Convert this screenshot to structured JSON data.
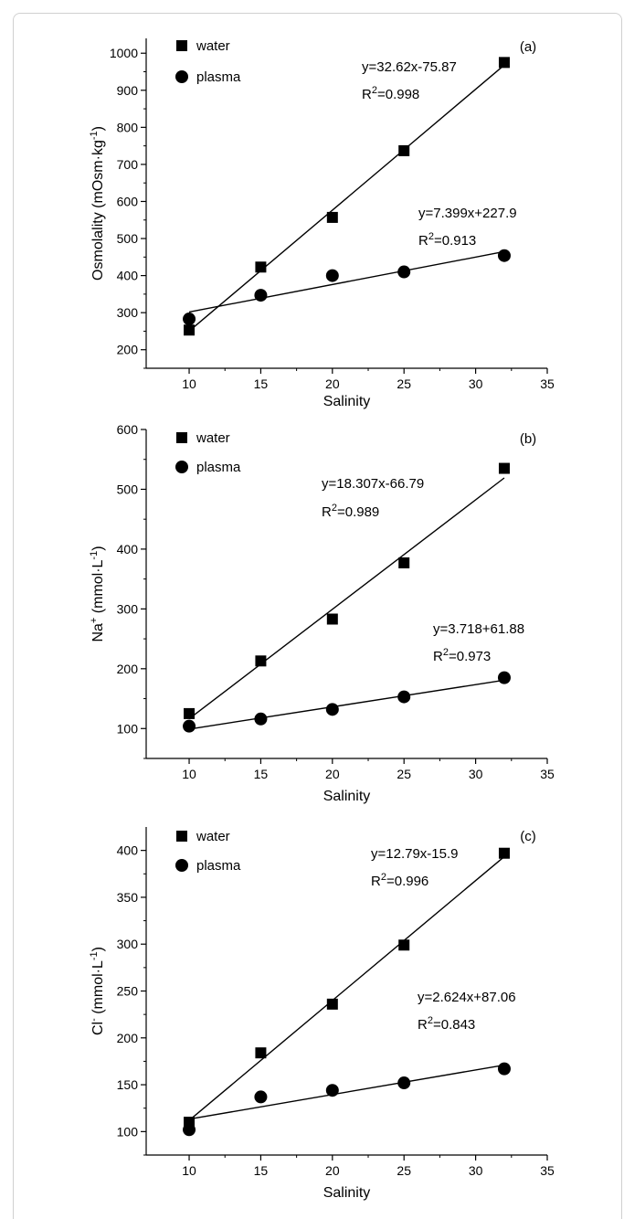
{
  "chart_data": [
    {
      "type": "scatter",
      "panel_label": "(a)",
      "xlabel": "Salinity",
      "ylabel": "Osmolality (mOsm·kg-1)",
      "ylabel_main": "Osmolality (mOsm·kg",
      "ylabel_sup": "-1",
      "ylabel_end": ")",
      "xlim": [
        7,
        35
      ],
      "ylim": [
        150,
        1040
      ],
      "xticks": [
        10,
        15,
        20,
        25,
        30,
        35
      ],
      "yticks": [
        200,
        300,
        400,
        500,
        600,
        700,
        800,
        900,
        1000
      ],
      "legend": [
        "water",
        "plasma"
      ],
      "series": [
        {
          "name": "water",
          "marker": "square",
          "x": [
            10,
            15,
            20,
            25,
            32
          ],
          "y": [
            253,
            423,
            557,
            737,
            975
          ],
          "fit": {
            "slope": 32.62,
            "intercept": -75.87
          },
          "equation": "y=32.62x-75.87",
          "r2_base": "R",
          "r2_sup": "2",
          "r2_value": "=0.998"
        },
        {
          "name": "plasma",
          "marker": "circle",
          "x": [
            10,
            15,
            20,
            25,
            32
          ],
          "y": [
            283,
            347,
            400,
            410,
            454
          ],
          "fit": {
            "slope": 7.399,
            "intercept": 227.9
          },
          "equation": "y=7.399x+227.9",
          "r2_base": "R",
          "r2_sup": "2",
          "r2_value": "=0.913"
        }
      ]
    },
    {
      "type": "scatter",
      "panel_label": "(b)",
      "xlabel": "Salinity",
      "ylabel": "Na+ (mmol·L-1)",
      "ylabel_main": "Na",
      "ylabel_sup1": "+",
      "ylabel_mid": " (mmol·L",
      "ylabel_sup": "-1",
      "ylabel_end": ")",
      "xlim": [
        7,
        35
      ],
      "ylim": [
        50,
        600
      ],
      "xticks": [
        10,
        15,
        20,
        25,
        30,
        35
      ],
      "yticks": [
        100,
        200,
        300,
        400,
        500,
        600
      ],
      "legend": [
        "water",
        "plasma"
      ],
      "series": [
        {
          "name": "water",
          "marker": "square",
          "x": [
            10,
            15,
            20,
            25,
            32
          ],
          "y": [
            125,
            213,
            283,
            377,
            535
          ],
          "fit": {
            "slope": 18.307,
            "intercept": -66.79
          },
          "equation": "y=18.307x-66.79",
          "r2_base": "R",
          "r2_sup": "2",
          "r2_value": "=0.989"
        },
        {
          "name": "plasma",
          "marker": "circle",
          "x": [
            10,
            15,
            20,
            25,
            32
          ],
          "y": [
            104,
            116,
            132,
            153,
            185
          ],
          "fit": {
            "slope": 3.718,
            "intercept": 61.88
          },
          "equation": "y=3.718+61.88",
          "r2_base": "R",
          "r2_sup": "2",
          "r2_value": "=0.973"
        }
      ]
    },
    {
      "type": "scatter",
      "panel_label": "(c)",
      "xlabel": "Salinity",
      "ylabel": "Cl- (mmol·L-1)",
      "ylabel_main": "Cl",
      "ylabel_sup1": "-",
      "ylabel_mid": " (mmol·L",
      "ylabel_sup": "-1",
      "ylabel_end": ")",
      "xlim": [
        7,
        35
      ],
      "ylim": [
        75,
        425
      ],
      "xticks": [
        10,
        15,
        20,
        25,
        30,
        35
      ],
      "yticks": [
        100,
        150,
        200,
        250,
        300,
        350,
        400
      ],
      "legend": [
        "water",
        "plasma"
      ],
      "series": [
        {
          "name": "water",
          "marker": "square",
          "x": [
            10,
            15,
            20,
            25,
            32
          ],
          "y": [
            110,
            184,
            236,
            299,
            397
          ],
          "fit": {
            "slope": 12.79,
            "intercept": -15.9
          },
          "equation": "y=12.79x-15.9",
          "r2_base": "R",
          "r2_sup": "2",
          "r2_value": "=0.996"
        },
        {
          "name": "plasma",
          "marker": "circle",
          "x": [
            10,
            15,
            20,
            25,
            32
          ],
          "y": [
            102,
            137,
            144,
            152,
            167
          ],
          "fit": {
            "slope": 2.624,
            "intercept": 87.06
          },
          "equation": "y=2.624x+87.06",
          "r2_base": "R",
          "r2_sup": "2",
          "r2_value": "=0.843"
        }
      ]
    }
  ]
}
